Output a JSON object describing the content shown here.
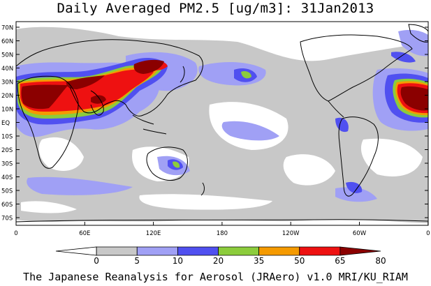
{
  "title": "Daily Averaged PM2.5 [ug/m3]: 31Jan2013",
  "footer": "The Japanese Reanalysis for Aerosol (JRAero) v1.0 MRI/KU_RIAM",
  "lat_labels": [
    "70N",
    "60N",
    "50N",
    "40N",
    "30N",
    "20N",
    "10N",
    "EQ",
    "10S",
    "20S",
    "30S",
    "40S",
    "50S",
    "60S",
    "70S"
  ],
  "lon_labels": [
    "0",
    "60E",
    "120E",
    "180",
    "120W",
    "60W",
    "0"
  ],
  "colorbar": {
    "levels": [
      "0",
      "5",
      "10",
      "20",
      "35",
      "50",
      "65",
      "80"
    ],
    "colors": [
      "#ffffff",
      "#c8c8c8",
      "#a0a0f5",
      "#5050f0",
      "#8ccc3c",
      "#f59a00",
      "#ee1111",
      "#8b0000"
    ]
  },
  "colors": {
    "ocean": "#ffffff",
    "coast": "#000000",
    "bin_5_10": "#c8c8c8",
    "bin_10_20": "#a0a0f5",
    "bin_20_35": "#5050f0",
    "bin_35_50": "#8ccc3c",
    "bin_50_65": "#f59a00",
    "bin_65_80": "#ee1111",
    "bin_80_plus": "#8b0000"
  }
}
